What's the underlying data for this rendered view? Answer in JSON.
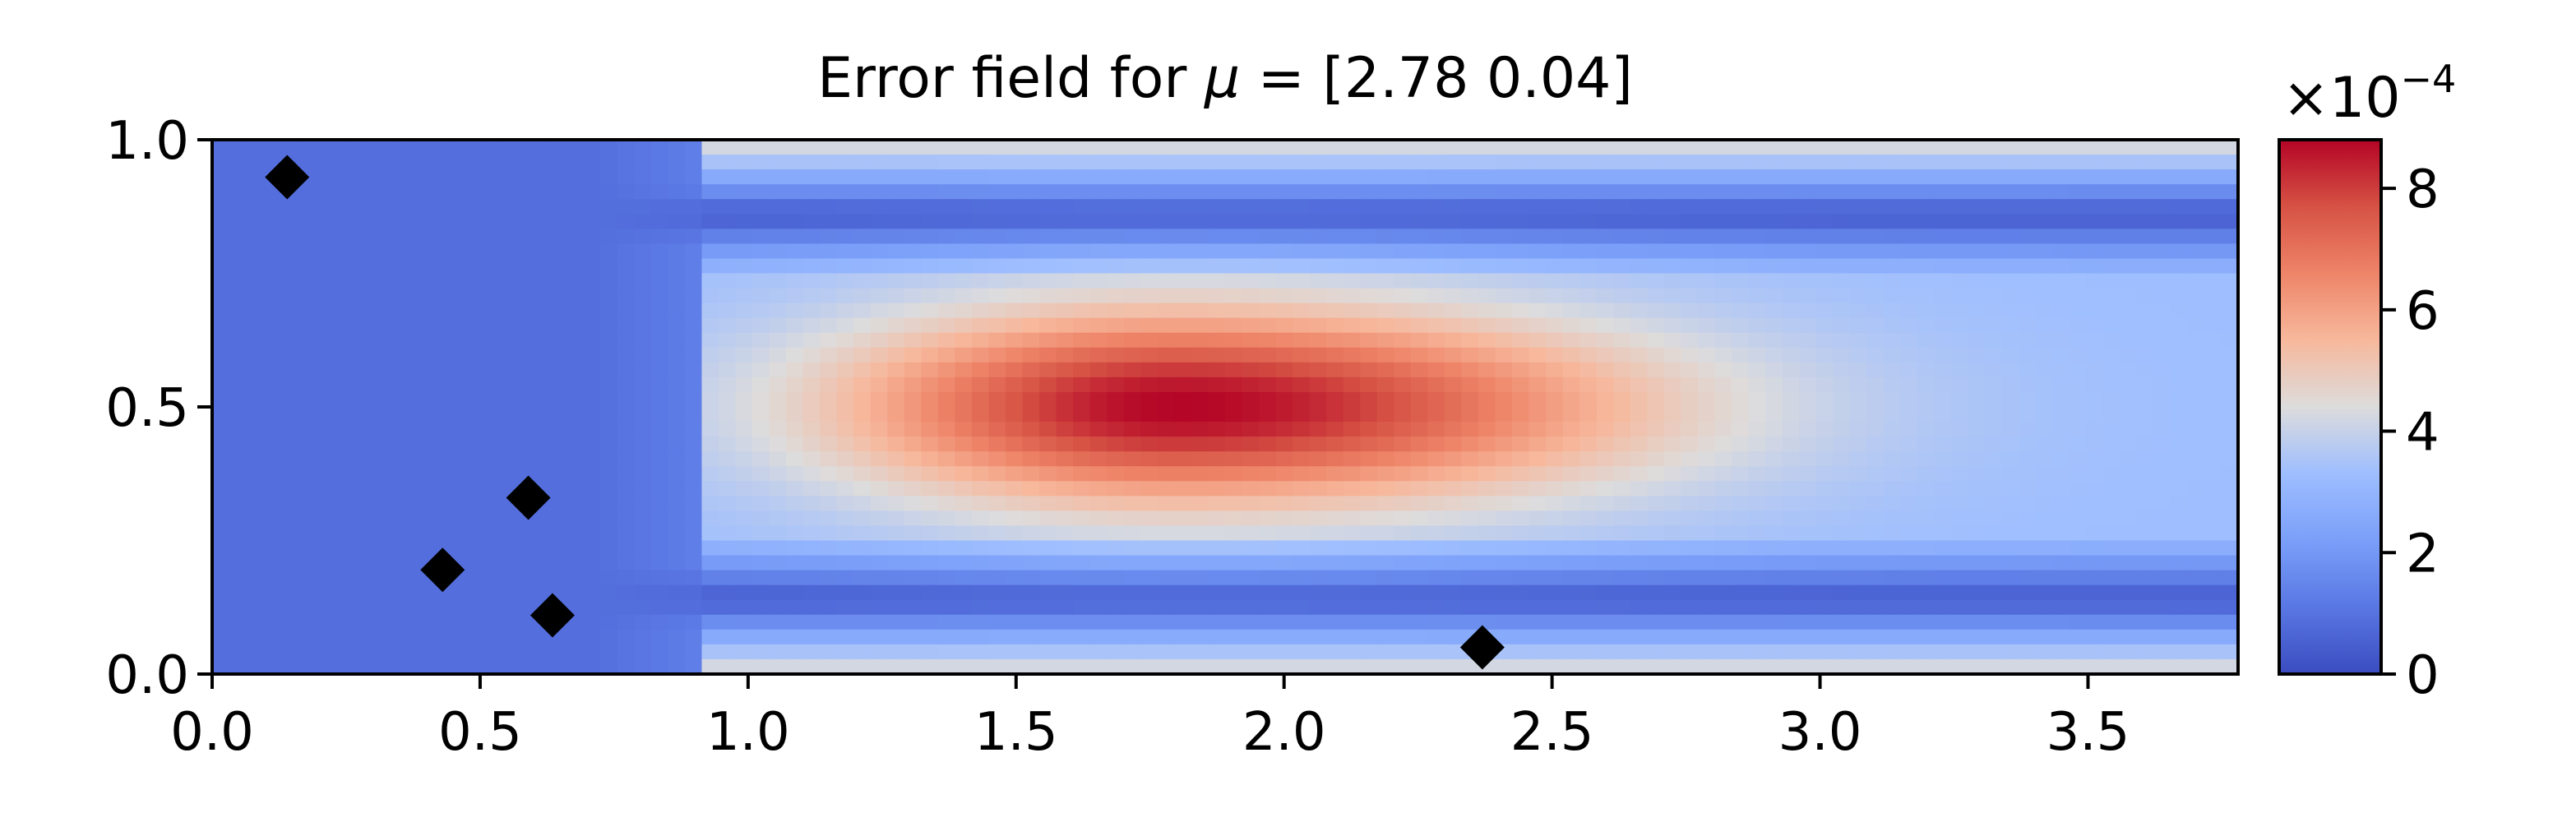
{
  "chart_data": {
    "type": "heatmap",
    "title": "Error field for μ = [2.78 0.04]",
    "title_parts": {
      "prefix": "Error field for ",
      "symbol": "μ",
      "suffix": " = [2.78 0.04]"
    },
    "xlabel": "",
    "ylabel": "",
    "xlim": [
      0.0,
      3.78
    ],
    "ylim": [
      0.0,
      1.0
    ],
    "x_ticks": [
      "0.0",
      "0.5",
      "1.0",
      "1.5",
      "2.0",
      "2.5",
      "3.0",
      "3.5"
    ],
    "y_ticks": [
      "0.0",
      "0.5",
      "1.0"
    ],
    "colormap": "coolwarm",
    "colorbar": {
      "range": [
        0,
        8.8
      ],
      "ticks": [
        "0",
        "2",
        "4",
        "6",
        "8"
      ],
      "scale_prefix": "×10",
      "scale_exponent": "−4"
    },
    "field": {
      "inlet_end_x": 0.92,
      "core_center": [
        1.8,
        0.5
      ],
      "core_peak": 8.8,
      "wall_band_y": [
        0.14,
        0.86
      ],
      "background": 0.9,
      "wall_value": 0.3,
      "edge_value": 4.2
    },
    "markers": [
      {
        "x": 0.14,
        "y": 0.93
      },
      {
        "x": 0.43,
        "y": 0.195
      },
      {
        "x": 0.59,
        "y": 0.33
      },
      {
        "x": 0.635,
        "y": 0.11
      },
      {
        "x": 2.37,
        "y": 0.05
      }
    ],
    "marker_color": "#000000",
    "grid": false
  }
}
